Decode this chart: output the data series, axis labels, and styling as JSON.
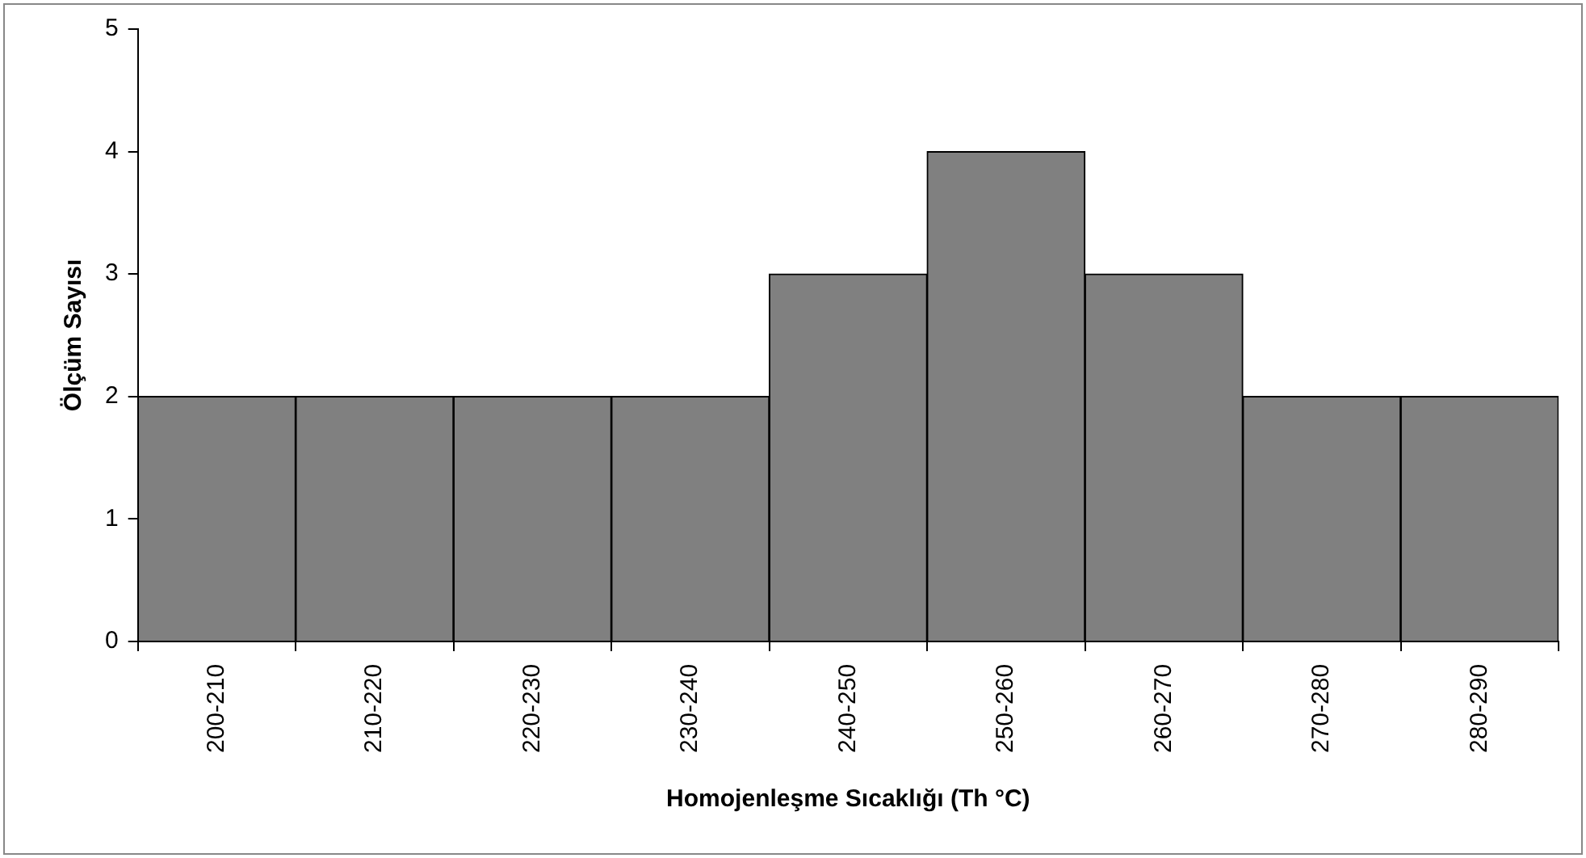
{
  "chart_data": {
    "type": "bar",
    "xlabel": "Homojenleşme Sıcaklığı (Th °C)",
    "ylabel": "Ölçüm Sayısı",
    "categories": [
      "200-210",
      "210-220",
      "220-230",
      "230-240",
      "240-250",
      "250-260",
      "260-270",
      "270-280",
      "280-290"
    ],
    "values": [
      2,
      2,
      2,
      2,
      3,
      4,
      3,
      2,
      2
    ],
    "color": "#808080",
    "ylim": [
      0,
      5
    ],
    "yticks": [
      0,
      1,
      2,
      3,
      4,
      5
    ],
    "grid": false,
    "legend": false
  }
}
